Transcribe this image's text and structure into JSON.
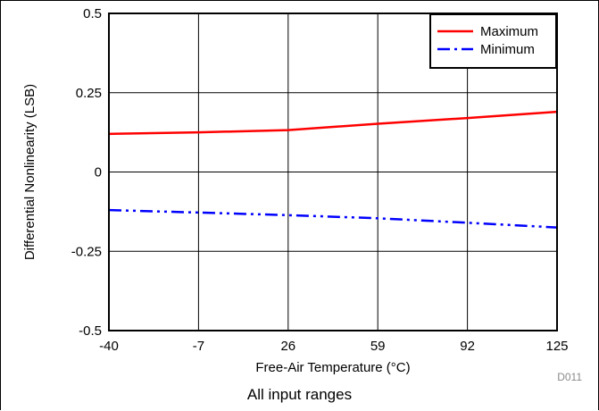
{
  "chart_data": {
    "type": "line",
    "xlabel": "Free-Air Temperature (°C)",
    "ylabel": "Differential Nonlinearity (LSB)",
    "x_ticks": [
      "-40",
      "-7",
      "26",
      "59",
      "92",
      "125"
    ],
    "y_ticks": [
      "0.5",
      "0.25",
      "0",
      "-0.25",
      "-0.5"
    ],
    "xlim": [
      -40,
      125
    ],
    "ylim": [
      -0.5,
      0.5
    ],
    "grid": true,
    "legend_position": "top-right",
    "series": [
      {
        "name": "Maximum",
        "color": "#ff0000",
        "style": "solid",
        "x": [
          -40,
          -7,
          26,
          59,
          92,
          125
        ],
        "y": [
          0.12,
          0.125,
          0.132,
          0.152,
          0.17,
          0.19
        ]
      },
      {
        "name": "Minimum",
        "color": "#0000ff",
        "style": "dash-dot",
        "x": [
          -40,
          -7,
          26,
          59,
          92,
          125
        ],
        "y": [
          -0.12,
          -0.128,
          -0.136,
          -0.146,
          -0.16,
          -0.175
        ]
      }
    ]
  },
  "figure_id": "D011",
  "caption": "All input ranges"
}
